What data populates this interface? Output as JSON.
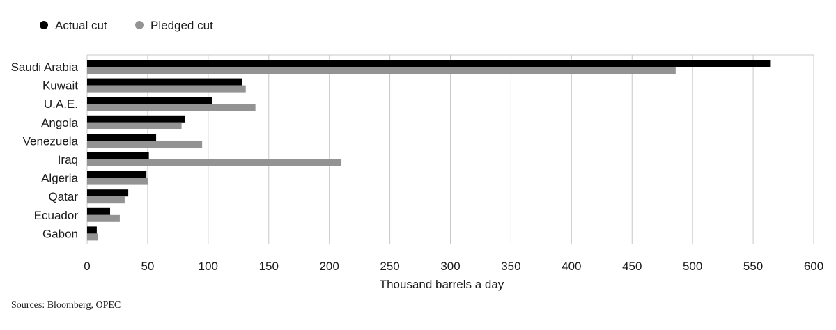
{
  "chart_data": {
    "type": "bar",
    "orientation": "horizontal",
    "categories": [
      "Saudi Arabia",
      "Kuwait",
      "U.A.E.",
      "Angola",
      "Venezuela",
      "Iraq",
      "Algeria",
      "Qatar",
      "Ecuador",
      "Gabon"
    ],
    "series": [
      {
        "name": "Actual cut",
        "color": "#000000",
        "values": [
          564,
          128,
          103,
          81,
          57,
          51,
          49,
          34,
          19,
          8
        ]
      },
      {
        "name": "Pledged cut",
        "color": "#939393",
        "values": [
          486,
          131,
          139,
          78,
          95,
          210,
          50,
          31,
          27,
          9
        ]
      }
    ],
    "xlabel": "Thousand barrels a day",
    "xlim": [
      0,
      600
    ],
    "xticks": [
      0,
      50,
      100,
      150,
      200,
      250,
      300,
      350,
      400,
      450,
      500,
      550,
      600
    ],
    "grid": true,
    "legend_position": "top-left"
  },
  "source_note": "Sources:  Bloomberg, OPEC"
}
